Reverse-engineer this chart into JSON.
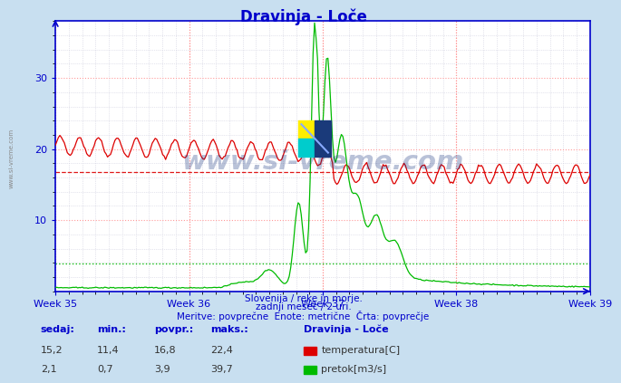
{
  "title": "Dravinja - Loče",
  "background_color": "#c8dff0",
  "plot_bg_color": "#ffffff",
  "grid_major_color": "#ff9999",
  "grid_minor_color": "#ccccdd",
  "x_label": "",
  "y_label": "",
  "ylim": [
    0,
    38
  ],
  "yticks": [
    10,
    20,
    30
  ],
  "week_labels": [
    "Week 35",
    "Week 36",
    "Week 37",
    "Week 38",
    "Week 39"
  ],
  "title_color": "#0000cc",
  "axis_color": "#0000cc",
  "tick_color": "#0000cc",
  "temp_color": "#dd0000",
  "flow_color": "#00bb00",
  "avg_temp": 16.8,
  "avg_flow": 3.9,
  "subtitle1": "Slovenija / reke in morje.",
  "subtitle2": "zadnji mesec / 2 uri.",
  "subtitle3": "Meritve: povprečne  Enote: metrične  Črta: povprečje",
  "legend_title": "Dravinja - Loče",
  "table_headers": [
    "sedaj:",
    "min.:",
    "povpr.:",
    "maks.:"
  ],
  "table_temp": [
    "15,2",
    "11,4",
    "16,8",
    "22,4"
  ],
  "table_flow": [
    "2,1",
    "0,7",
    "3,9",
    "39,7"
  ],
  "temp_label": "temperatura[C]",
  "flow_label": "pretok[m3/s]",
  "n_points": 360,
  "watermark": "www.si-vreme.com"
}
